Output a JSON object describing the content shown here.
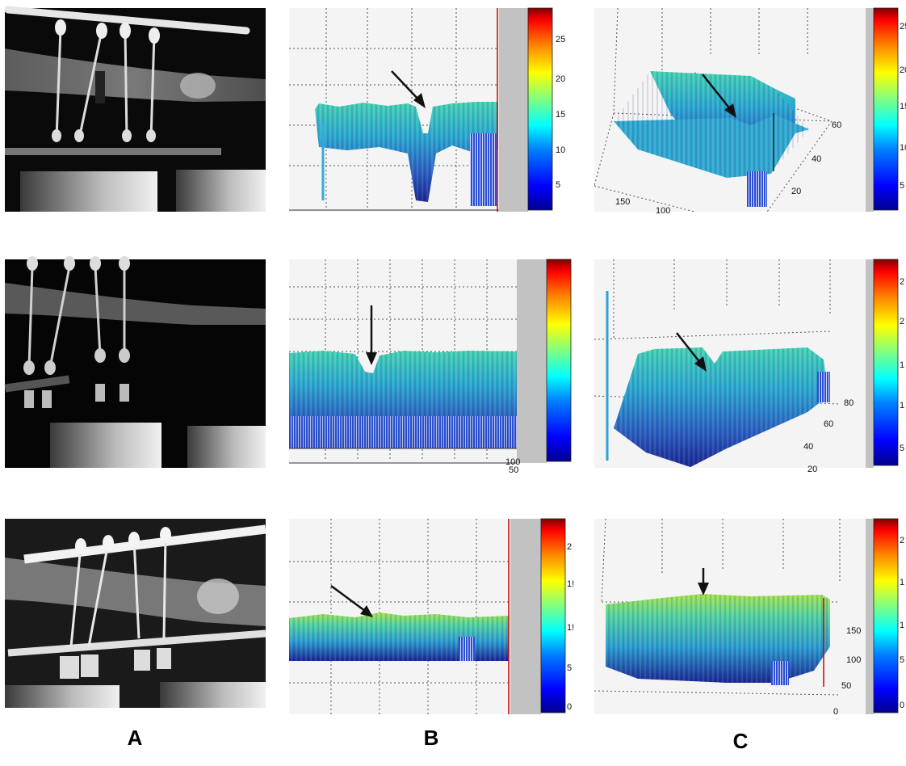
{
  "column_labels": {
    "a": "A",
    "b": "B",
    "c": "C"
  },
  "colorbar_ticks": {
    "b1": [
      "25",
      "20",
      "15",
      "10",
      "5"
    ],
    "c1": [
      "25",
      "20",
      "15",
      "10",
      "5"
    ],
    "c2": [
      "2",
      "2",
      "1",
      "1",
      "5"
    ],
    "b3": [
      "2",
      "1!",
      "1!",
      "5",
      "0"
    ],
    "c3": [
      "2",
      "1",
      "1",
      "5",
      "0"
    ]
  },
  "axis_ticks": {
    "b2": {
      "corner_top": "100",
      "corner_bottom": "50"
    },
    "c1": {
      "depth": [
        "60",
        "40",
        "20"
      ],
      "width": [
        "150",
        "100"
      ]
    },
    "c2": {
      "depth": [
        "80",
        "60",
        "40",
        "20"
      ]
    },
    "c3": {
      "depth": [
        "150",
        "100",
        "50",
        "0"
      ]
    }
  },
  "colormap": [
    "#00008f",
    "#0000ff",
    "#0080ff",
    "#00ffff",
    "#80ff80",
    "#ffff00",
    "#ff8000",
    "#ff0000",
    "#800000"
  ],
  "colors": {
    "surface_low": "#1a2f9e",
    "surface_mid": "#2a8fc8",
    "surface_high": "#41d6b0",
    "surface_peak": "#9ee34a",
    "plot_bg": "#f4f4f4",
    "grid": "#444444",
    "panel_gray": "#c2c2c2",
    "arrow": "#111111"
  }
}
